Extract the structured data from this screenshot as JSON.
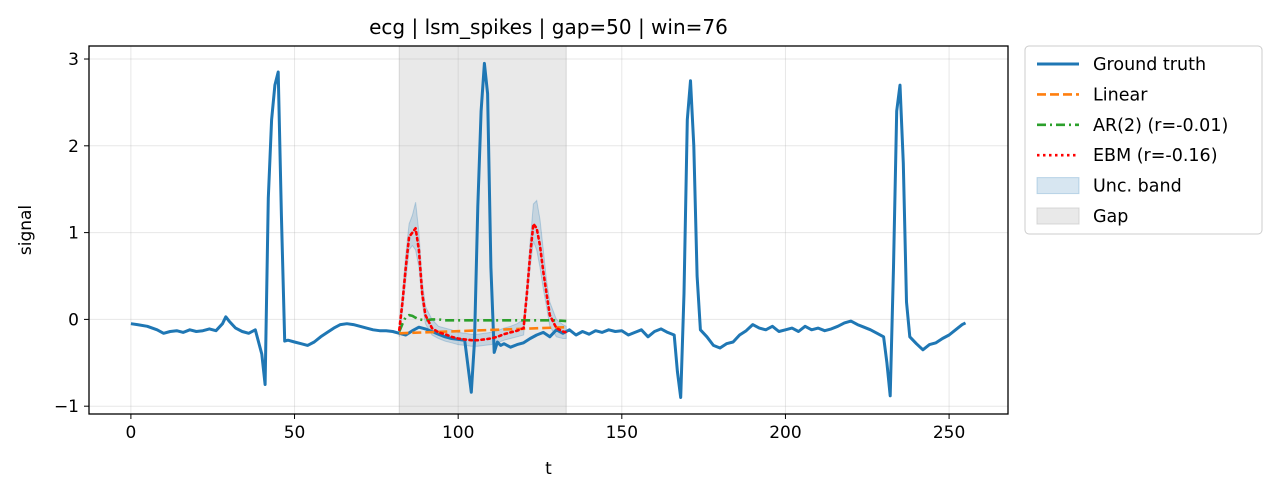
{
  "chart_data": {
    "type": "line",
    "title": "ecg | lsm_spikes | gap=50 | win=76",
    "xlabel": "t",
    "ylabel": "signal",
    "xlim": [
      -12.8,
      268
    ],
    "ylim": [
      -1.09,
      3.15
    ],
    "xticks": [
      0,
      50,
      100,
      150,
      200,
      250
    ],
    "xtick_labels": [
      "0",
      "50",
      "100",
      "150",
      "200",
      "250"
    ],
    "yticks": [
      -1,
      0,
      1,
      2,
      3
    ],
    "ytick_labels": [
      "−1",
      "0",
      "1",
      "2",
      "3"
    ],
    "grid": true,
    "legend_position": "outside-right-top",
    "gap": {
      "label": "Gap",
      "start": 82,
      "end": 133,
      "color": "#c8c8c8"
    },
    "series": [
      {
        "name": "Ground truth",
        "color": "#1f77b4",
        "style": "solid",
        "x": [
          0,
          2,
          5,
          8,
          10,
          12,
          14,
          16,
          18,
          20,
          22,
          24,
          26,
          28,
          29,
          30,
          32,
          34,
          36,
          38,
          40,
          41,
          42,
          43,
          44,
          45,
          46,
          47,
          48,
          50,
          52,
          54,
          56,
          58,
          60,
          62,
          64,
          66,
          68,
          70,
          72,
          74,
          76,
          78,
          80,
          82,
          84,
          86,
          88,
          90,
          92,
          94,
          96,
          98,
          100,
          102,
          104,
          105,
          106,
          107,
          108,
          109,
          110,
          111,
          112,
          113,
          114,
          116,
          118,
          120,
          122,
          124,
          126,
          128,
          130,
          132,
          134,
          136,
          138,
          140,
          142,
          144,
          146,
          148,
          150,
          152,
          154,
          156,
          158,
          160,
          162,
          164,
          166,
          167,
          168,
          169,
          170,
          171,
          172,
          173,
          174,
          176,
          178,
          180,
          182,
          184,
          186,
          188,
          190,
          192,
          194,
          196,
          198,
          200,
          202,
          204,
          206,
          208,
          210,
          212,
          214,
          216,
          218,
          220,
          222,
          224,
          226,
          228,
          230,
          231,
          232,
          233,
          234,
          235,
          236,
          237,
          238,
          240,
          242,
          244,
          246,
          248,
          250,
          252,
          254,
          255
        ],
        "y": [
          -0.05,
          -0.06,
          -0.08,
          -0.12,
          -0.16,
          -0.14,
          -0.13,
          -0.15,
          -0.12,
          -0.14,
          -0.13,
          -0.11,
          -0.13,
          -0.05,
          0.03,
          -0.02,
          -0.1,
          -0.14,
          -0.16,
          -0.12,
          -0.4,
          -0.75,
          1.4,
          2.3,
          2.7,
          2.85,
          1.2,
          -0.25,
          -0.24,
          -0.26,
          -0.28,
          -0.3,
          -0.26,
          -0.2,
          -0.15,
          -0.1,
          -0.06,
          -0.05,
          -0.06,
          -0.08,
          -0.1,
          -0.12,
          -0.13,
          -0.13,
          -0.14,
          -0.16,
          -0.18,
          -0.13,
          -0.09,
          -0.11,
          -0.14,
          -0.17,
          -0.2,
          -0.22,
          -0.23,
          -0.24,
          -0.84,
          -0.25,
          1.3,
          2.4,
          2.95,
          2.6,
          0.6,
          -0.38,
          -0.26,
          -0.3,
          -0.28,
          -0.32,
          -0.29,
          -0.27,
          -0.22,
          -0.18,
          -0.15,
          -0.2,
          -0.12,
          -0.16,
          -0.12,
          -0.18,
          -0.14,
          -0.17,
          -0.13,
          -0.15,
          -0.12,
          -0.14,
          -0.13,
          -0.18,
          -0.15,
          -0.12,
          -0.2,
          -0.14,
          -0.11,
          -0.15,
          -0.18,
          -0.6,
          -0.9,
          0.3,
          2.3,
          2.75,
          2.0,
          0.5,
          -0.12,
          -0.2,
          -0.3,
          -0.33,
          -0.28,
          -0.26,
          -0.18,
          -0.13,
          -0.06,
          -0.1,
          -0.12,
          -0.08,
          -0.14,
          -0.12,
          -0.1,
          -0.14,
          -0.08,
          -0.12,
          -0.1,
          -0.13,
          -0.11,
          -0.08,
          -0.04,
          -0.02,
          -0.06,
          -0.09,
          -0.12,
          -0.16,
          -0.2,
          -0.5,
          -0.88,
          0.6,
          2.4,
          2.7,
          1.8,
          0.2,
          -0.2,
          -0.28,
          -0.35,
          -0.29,
          -0.27,
          -0.22,
          -0.18,
          -0.12,
          -0.06,
          -0.04
        ]
      },
      {
        "name": "Linear",
        "color": "#ff7f0e",
        "style": "dashed",
        "x": [
          82,
          133
        ],
        "y": [
          -0.16,
          -0.09
        ]
      },
      {
        "name": "AR(2) (r=-0.01)",
        "color": "#2ca02c",
        "style": "dashdot",
        "x": [
          82,
          83,
          84,
          85,
          86,
          87,
          88,
          90,
          92,
          94,
          96,
          100,
          106,
          112,
          118,
          124,
          130,
          133
        ],
        "y": [
          -0.14,
          -0.05,
          0.03,
          0.05,
          0.04,
          0.02,
          0.0,
          -0.01,
          0.0,
          0.0,
          -0.01,
          -0.01,
          -0.01,
          -0.01,
          -0.01,
          -0.01,
          -0.01,
          -0.02
        ]
      },
      {
        "name": "EBM (r=-0.16)",
        "color": "#ff0000",
        "style": "dotted",
        "x": [
          82,
          83,
          84,
          85,
          86,
          87,
          88,
          89,
          90,
          92,
          94,
          96,
          98,
          100,
          102,
          104,
          106,
          108,
          110,
          112,
          114,
          116,
          118,
          120,
          121,
          122,
          123,
          124,
          125,
          126,
          127,
          128,
          130,
          132,
          133
        ],
        "y": [
          -0.12,
          0.2,
          0.6,
          0.95,
          1.0,
          1.05,
          0.8,
          0.3,
          0.05,
          -0.1,
          -0.15,
          -0.17,
          -0.2,
          -0.22,
          -0.23,
          -0.24,
          -0.24,
          -0.23,
          -0.22,
          -0.2,
          -0.17,
          -0.15,
          -0.13,
          -0.1,
          0.3,
          0.75,
          1.1,
          1.05,
          0.85,
          0.55,
          0.3,
          0.05,
          -0.1,
          -0.14,
          -0.15
        ]
      }
    ],
    "band": {
      "name": "Unc. band",
      "color": "#1f77b4",
      "x": [
        82,
        83,
        84,
        85,
        86,
        87,
        88,
        89,
        90,
        92,
        94,
        96,
        98,
        100,
        102,
        104,
        106,
        108,
        110,
        112,
        114,
        116,
        118,
        120,
        121,
        122,
        123,
        124,
        125,
        126,
        127,
        128,
        130,
        132,
        133
      ],
      "upper": [
        -0.05,
        0.3,
        0.75,
        1.1,
        1.2,
        1.35,
        1.0,
        0.45,
        0.15,
        0.0,
        -0.08,
        -0.1,
        -0.12,
        -0.15,
        -0.16,
        -0.17,
        -0.17,
        -0.16,
        -0.15,
        -0.13,
        -0.1,
        -0.08,
        -0.05,
        0.0,
        0.4,
        0.9,
        1.33,
        1.37,
        1.15,
        0.8,
        0.45,
        0.2,
        0.0,
        -0.06,
        -0.08
      ],
      "lower": [
        -0.2,
        0.1,
        0.45,
        0.8,
        0.85,
        0.8,
        0.6,
        0.2,
        -0.05,
        -0.18,
        -0.22,
        -0.25,
        -0.27,
        -0.29,
        -0.3,
        -0.31,
        -0.31,
        -0.3,
        -0.29,
        -0.27,
        -0.24,
        -0.22,
        -0.2,
        -0.18,
        0.2,
        0.6,
        0.9,
        0.8,
        0.6,
        0.35,
        0.15,
        -0.08,
        -0.2,
        -0.22,
        -0.22
      ]
    }
  }
}
